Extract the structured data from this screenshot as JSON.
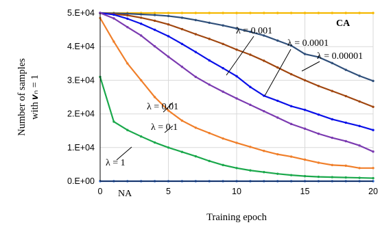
{
  "chart_data": {
    "type": "line",
    "xlabel": "Training epoch",
    "ylabel_line1": "Number of samples",
    "ylabel_line2": "with 𝒗ₙ = 1",
    "xlim": [
      0,
      20
    ],
    "ylim": [
      0,
      50000
    ],
    "x_ticks": [
      0,
      5,
      10,
      15,
      20
    ],
    "x_tick_labels": [
      "0",
      "5",
      "10",
      "15",
      "20"
    ],
    "y_ticks": [
      0,
      10000,
      20000,
      30000,
      40000,
      50000
    ],
    "y_tick_labels": [
      "0.E+00",
      "1.E+04",
      "2.E+04",
      "3.E+04",
      "4.E+04",
      "5.E+04"
    ],
    "grid": true,
    "x": [
      0,
      1,
      2,
      3,
      4,
      5,
      6,
      7,
      8,
      9,
      10,
      11,
      12,
      13,
      14,
      15,
      16,
      17,
      18,
      19,
      20
    ],
    "series": [
      {
        "name": "CA",
        "color": "#f5b800",
        "values": [
          50000,
          50000,
          50000,
          50000,
          50000,
          50000,
          50000,
          50000,
          50000,
          50000,
          50000,
          50000,
          50000,
          50000,
          50000,
          50000,
          50000,
          50000,
          50000,
          50000,
          50000
        ]
      },
      {
        "name": "λ = 0.00001",
        "color": "#2f4f7a",
        "values": [
          50000,
          49900,
          49800,
          49600,
          49400,
          49100,
          48600,
          47900,
          47100,
          46300,
          45400,
          44400,
          43300,
          41800,
          40300,
          37800,
          36900,
          35100,
          33100,
          31300,
          29800
        ]
      },
      {
        "name": "λ = 0.0001",
        "color": "#a0460f",
        "values": [
          50000,
          49700,
          49300,
          48600,
          47700,
          46600,
          45200,
          43700,
          42300,
          40800,
          39100,
          37600,
          35800,
          33800,
          31800,
          30000,
          28300,
          26800,
          25300,
          23700,
          22100
        ]
      },
      {
        "name": "λ = 0.001",
        "color": "#0a10e8",
        "values": [
          50000,
          49500,
          48300,
          46800,
          45000,
          43100,
          40800,
          38400,
          35900,
          33600,
          31200,
          28000,
          25400,
          23900,
          22300,
          21200,
          19800,
          18400,
          17400,
          16400,
          15200
        ]
      },
      {
        "name": "λ = 0.01",
        "color": "#7b3ab0",
        "values": [
          50000,
          48400,
          45800,
          43300,
          40100,
          37000,
          34000,
          31000,
          28700,
          26600,
          24600,
          22700,
          20800,
          18900,
          17000,
          15600,
          14100,
          12900,
          11900,
          10600,
          8800
        ]
      },
      {
        "name": "λ = 0.1",
        "color": "#f07f2a",
        "values": [
          48500,
          41500,
          35000,
          30000,
          25000,
          21000,
          18000,
          15900,
          14300,
          12700,
          11400,
          10200,
          9000,
          8000,
          7300,
          6400,
          5500,
          4800,
          4600,
          3900,
          3900
        ]
      },
      {
        "name": "λ = 1",
        "color": "#1aa84b",
        "values": [
          31000,
          17700,
          15200,
          13300,
          11500,
          10000,
          8700,
          7400,
          6000,
          4800,
          3900,
          3200,
          2700,
          2200,
          1800,
          1500,
          1300,
          1200,
          1100,
          1000,
          900
        ]
      },
      {
        "name": "NA",
        "color": "#2e6bd8",
        "values": [
          0,
          0,
          0,
          0,
          0,
          0,
          0,
          0,
          0,
          0,
          0,
          0,
          0,
          0,
          0,
          0,
          0,
          0,
          0,
          0,
          0
        ]
      }
    ],
    "annotations": [
      {
        "text": "CA"
      },
      {
        "text": "λ = 0.001"
      },
      {
        "text": "λ = 0.0001"
      },
      {
        "text": "λ = 0.00001"
      },
      {
        "text": "λ = 0.01"
      },
      {
        "text": "λ = 0.1"
      },
      {
        "text": "λ = 1"
      },
      {
        "text": "NA"
      }
    ]
  }
}
